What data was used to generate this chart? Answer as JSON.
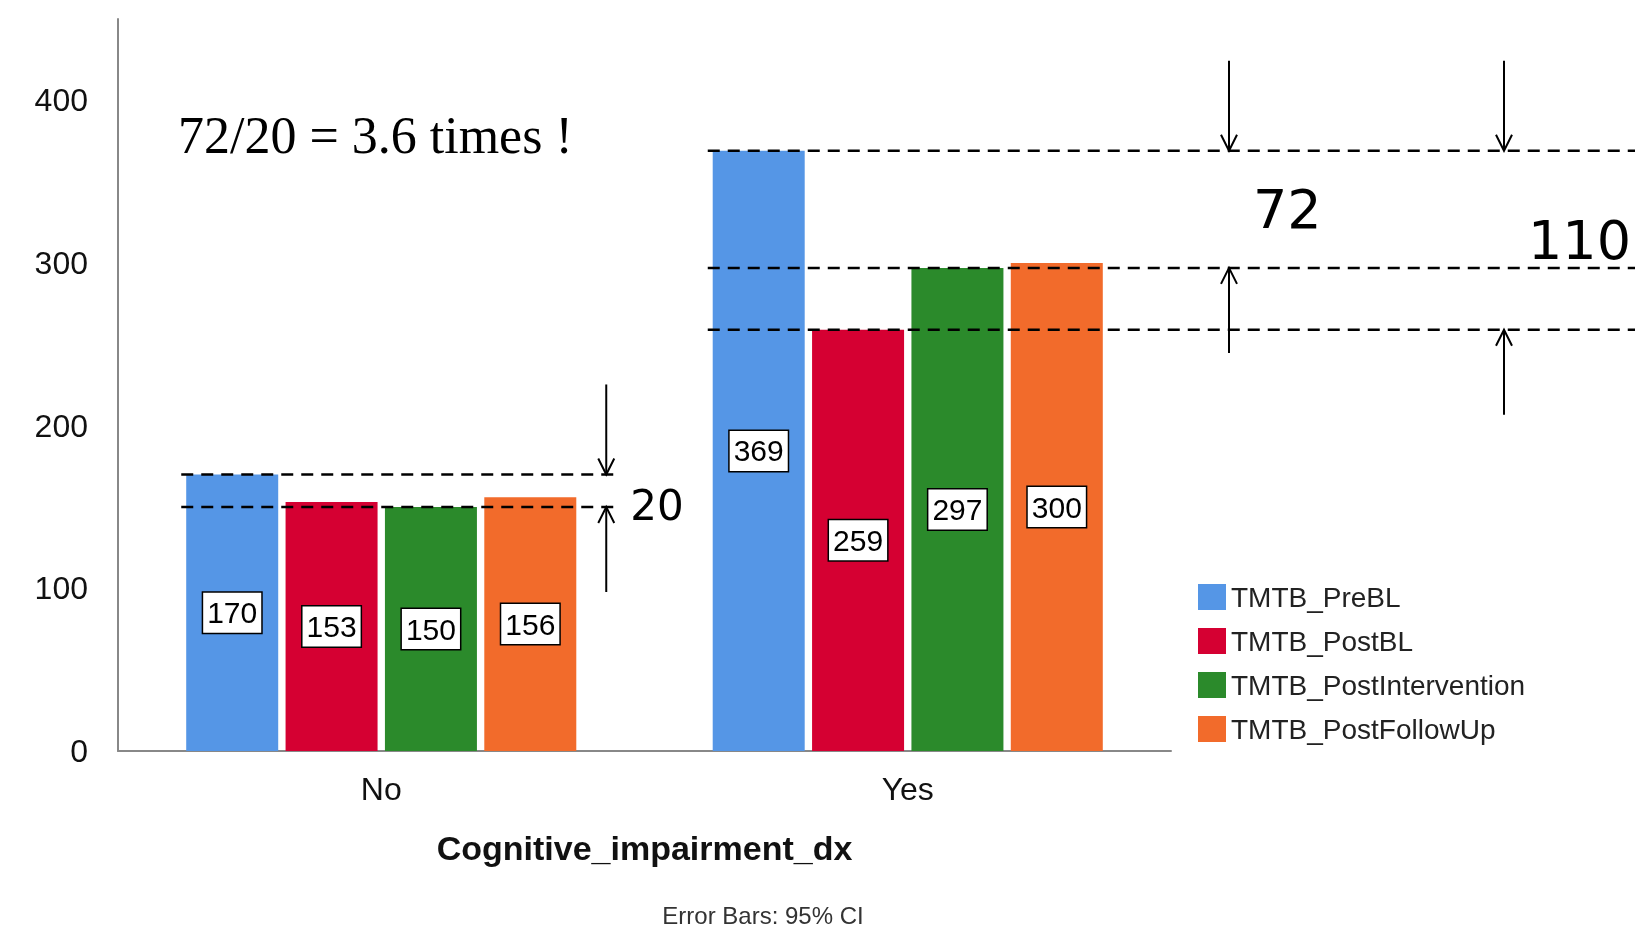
{
  "chart_data": {
    "type": "bar",
    "xlabel": "Cognitive_impairment_dx",
    "categories": [
      "No",
      "Yes"
    ],
    "series": [
      {
        "name": "TMTB_PreBL",
        "color": "#5596e6",
        "values": [
          170,
          369
        ]
      },
      {
        "name": "TMTB_PostBL",
        "color": "#d50032",
        "values": [
          153,
          259
        ]
      },
      {
        "name": "TMTB_PostIntervention",
        "color": "#2b8a2b",
        "values": [
          150,
          297
        ]
      },
      {
        "name": "TMTB_PostFollowUp",
        "color": "#f26b2b",
        "values": [
          156,
          300
        ]
      }
    ],
    "ylim": [
      0,
      450
    ],
    "yticks": [
      0,
      100,
      200,
      300,
      400
    ],
    "grid": false,
    "legend": "bottom right",
    "data_labels": true,
    "ref_lines": [
      {
        "axis": "y",
        "value": 170,
        "label": null,
        "color": "#000000",
        "line_style": "dashed"
      },
      {
        "axis": "y",
        "value": 150,
        "label": null,
        "color": "#000000",
        "line_style": "dashed"
      },
      {
        "axis": "y",
        "value": 369,
        "label": null,
        "color": "#000000",
        "line_style": "dashed"
      },
      {
        "axis": "y",
        "value": 297,
        "label": null,
        "color": "#000000",
        "line_style": "dashed"
      },
      {
        "axis": "y",
        "value": 259,
        "label": null,
        "color": "#000000",
        "line_style": "dashed"
      }
    ],
    "annotations": [
      "72/20 = 3.6 times !",
      "Error Bars: 95% CI",
      "20",
      "72",
      "110"
    ]
  }
}
